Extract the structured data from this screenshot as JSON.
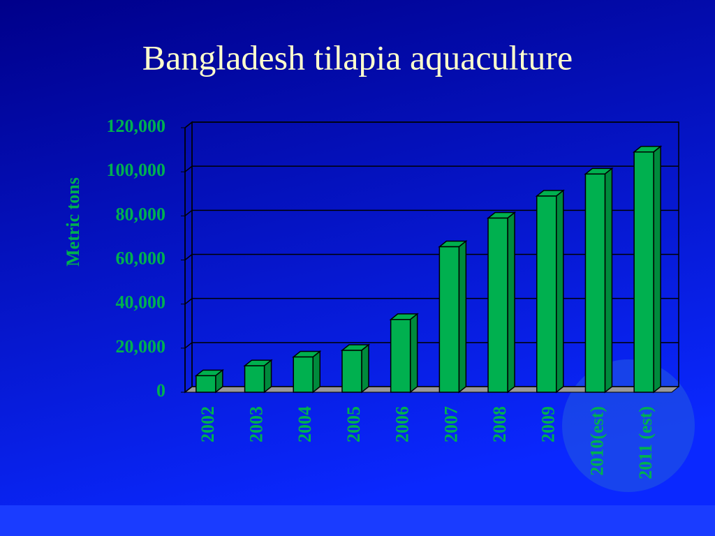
{
  "chart_data": {
    "type": "bar",
    "title": "Bangladesh tilapia aquaculture",
    "y_label": "Metric tons",
    "categories": [
      "2002",
      "2003",
      "2004",
      "2005",
      "2006",
      "2007",
      "2008",
      "2009",
      "2010(est)",
      "2011 (est)"
    ],
    "values": [
      7500,
      12000,
      16000,
      19000,
      33000,
      66000,
      79000,
      89000,
      99000,
      109000
    ],
    "color": "#00b04f",
    "ylim": [
      0,
      120000
    ],
    "yticks": [
      0,
      {
        "value": 20000,
        "label": "20,000"
      },
      {
        "value": 40000,
        "label": "40,000"
      },
      {
        "value": 60000,
        "label": "60,000"
      },
      {
        "value": 80000,
        "label": "80,000"
      },
      {
        "value": 100000,
        "label": "100,000"
      },
      {
        "value": 120000,
        "label": "120,000"
      }
    ],
    "grid": true
  }
}
